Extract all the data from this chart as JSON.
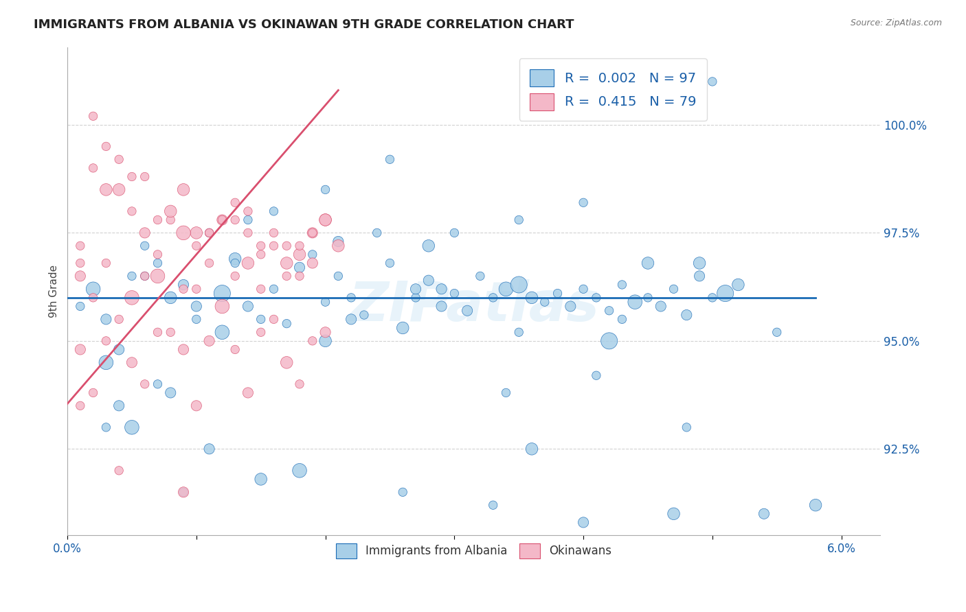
{
  "title": "IMMIGRANTS FROM ALBANIA VS OKINAWAN 9TH GRADE CORRELATION CHART",
  "source": "Source: ZipAtlas.com",
  "ylabel": "9th Grade",
  "xlim": [
    0.0,
    0.063
  ],
  "ylim": [
    90.5,
    101.8
  ],
  "watermark": "ZIPatlas",
  "blue_color": "#a8cfe8",
  "pink_color": "#f4b8c8",
  "trend_blue": "#1a6bb5",
  "trend_pink": "#d94f6e",
  "legend_text_color": "#1a5fa8",
  "blue_scatter_x": [
    0.001,
    0.002,
    0.003,
    0.004,
    0.005,
    0.006,
    0.007,
    0.008,
    0.009,
    0.01,
    0.011,
    0.012,
    0.013,
    0.014,
    0.015,
    0.016,
    0.017,
    0.018,
    0.019,
    0.02,
    0.021,
    0.022,
    0.023,
    0.024,
    0.025,
    0.026,
    0.027,
    0.028,
    0.029,
    0.03,
    0.031,
    0.032,
    0.033,
    0.034,
    0.035,
    0.036,
    0.037,
    0.038,
    0.039,
    0.04,
    0.041,
    0.042,
    0.043,
    0.044,
    0.045,
    0.046,
    0.047,
    0.048,
    0.049,
    0.05,
    0.051,
    0.052,
    0.003,
    0.005,
    0.008,
    0.012,
    0.016,
    0.02,
    0.025,
    0.03,
    0.035,
    0.04,
    0.045,
    0.05,
    0.007,
    0.014,
    0.021,
    0.028,
    0.035,
    0.042,
    0.049,
    0.003,
    0.009,
    0.015,
    0.022,
    0.029,
    0.036,
    0.043,
    0.006,
    0.013,
    0.02,
    0.027,
    0.034,
    0.041,
    0.048,
    0.055,
    0.004,
    0.011,
    0.018,
    0.026,
    0.033,
    0.04,
    0.047,
    0.054,
    0.058,
    0.01
  ],
  "blue_scatter_y": [
    95.8,
    96.2,
    95.5,
    93.5,
    96.5,
    97.2,
    96.8,
    96.0,
    96.3,
    95.8,
    97.5,
    96.1,
    96.9,
    97.8,
    95.5,
    96.2,
    95.4,
    96.7,
    97.0,
    95.9,
    97.3,
    96.0,
    95.6,
    97.5,
    96.8,
    95.3,
    96.0,
    96.4,
    95.8,
    96.1,
    95.7,
    96.5,
    96.0,
    96.2,
    96.3,
    96.0,
    95.9,
    96.1,
    95.8,
    96.2,
    96.0,
    95.7,
    96.3,
    95.9,
    96.0,
    95.8,
    96.2,
    95.6,
    96.5,
    96.0,
    96.1,
    96.3,
    94.5,
    93.0,
    93.8,
    95.2,
    98.0,
    98.5,
    99.2,
    97.5,
    97.8,
    98.2,
    96.8,
    101.0,
    94.0,
    95.8,
    96.5,
    97.2,
    95.2,
    95.0,
    96.8,
    93.0,
    91.5,
    91.8,
    95.5,
    96.2,
    92.5,
    95.5,
    96.5,
    96.8,
    95.0,
    96.2,
    93.8,
    94.2,
    93.0,
    95.2,
    94.8,
    92.5,
    92.0,
    91.5,
    91.2,
    90.8,
    91.0,
    91.0,
    91.2,
    95.5
  ],
  "pink_scatter_x": [
    0.001,
    0.002,
    0.003,
    0.004,
    0.005,
    0.006,
    0.007,
    0.008,
    0.009,
    0.01,
    0.011,
    0.012,
    0.013,
    0.014,
    0.015,
    0.016,
    0.017,
    0.018,
    0.019,
    0.02,
    0.021,
    0.002,
    0.004,
    0.006,
    0.008,
    0.01,
    0.012,
    0.014,
    0.016,
    0.018,
    0.02,
    0.003,
    0.007,
    0.011,
    0.015,
    0.019,
    0.001,
    0.005,
    0.009,
    0.013,
    0.017,
    0.001,
    0.003,
    0.005,
    0.007,
    0.009,
    0.011,
    0.013,
    0.015,
    0.017,
    0.019,
    0.002,
    0.006,
    0.01,
    0.014,
    0.018,
    0.004,
    0.008,
    0.012,
    0.016,
    0.02,
    0.001,
    0.003,
    0.005,
    0.007,
    0.009,
    0.011,
    0.013,
    0.015,
    0.017,
    0.019,
    0.002,
    0.006,
    0.01,
    0.014,
    0.018,
    0.001,
    0.004,
    0.009
  ],
  "pink_scatter_y": [
    96.8,
    100.2,
    99.5,
    99.2,
    98.8,
    97.5,
    97.0,
    97.8,
    98.5,
    97.2,
    97.5,
    97.8,
    98.2,
    97.5,
    97.0,
    97.2,
    96.8,
    97.0,
    97.5,
    97.8,
    97.2,
    99.0,
    98.5,
    98.8,
    98.0,
    97.5,
    97.8,
    98.0,
    97.5,
    97.2,
    97.8,
    98.5,
    97.8,
    97.5,
    97.2,
    97.5,
    97.2,
    98.0,
    97.5,
    97.8,
    97.2,
    96.5,
    96.8,
    96.0,
    96.5,
    96.2,
    96.8,
    96.5,
    96.2,
    96.5,
    96.8,
    96.0,
    96.5,
    96.2,
    96.8,
    96.5,
    95.5,
    95.2,
    95.8,
    95.5,
    95.2,
    94.8,
    95.0,
    94.5,
    95.2,
    94.8,
    95.0,
    94.8,
    95.2,
    94.5,
    95.0,
    93.8,
    94.0,
    93.5,
    93.8,
    94.0,
    93.5,
    92.0,
    91.5
  ],
  "blue_trend_x": [
    0.0,
    0.058
  ],
  "blue_trend_y": [
    96.0,
    96.0
  ],
  "pink_trend_x": [
    -0.001,
    0.021
  ],
  "pink_trend_y": [
    93.2,
    100.8
  ],
  "grid_color": "#cccccc",
  "background_color": "#ffffff",
  "y_tick_vals": [
    92.5,
    95.0,
    97.5,
    100.0
  ],
  "x_tick_vals": [
    0.0,
    0.01,
    0.02,
    0.03,
    0.04,
    0.05,
    0.06
  ]
}
